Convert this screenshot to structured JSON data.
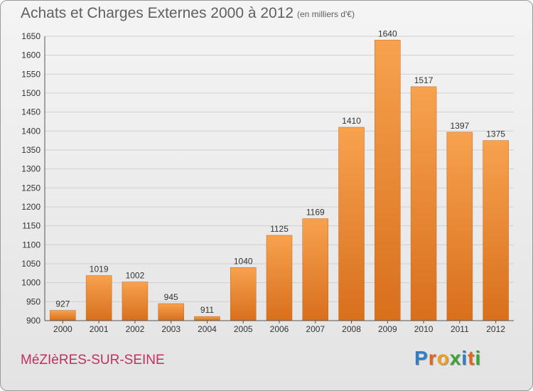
{
  "header": {
    "title": "Achats et Charges Externes 2000 à 2012",
    "unit": "(en milliers d'€)"
  },
  "footer": {
    "commune": "MéZIèRES-SUR-SEINE",
    "brand": {
      "letters": [
        "P",
        "r",
        "o",
        "x",
        "i",
        "t",
        "i"
      ],
      "colors": [
        "#2f7fc8",
        "#e2661d",
        "#f0a020",
        "#3aa33a",
        "#2f7fc8",
        "#e2661d",
        "#3aa33a"
      ]
    }
  },
  "colors": {
    "bar_light": "#f7a24f",
    "bar_dark": "#d86f1c",
    "grid": "#cfcfcf",
    "text": "#333333"
  },
  "chart_data": {
    "type": "bar",
    "categories": [
      "2000",
      "2001",
      "2002",
      "2003",
      "2004",
      "2005",
      "2006",
      "2007",
      "2008",
      "2009",
      "2010",
      "2011",
      "2012"
    ],
    "values": [
      927,
      1019,
      1002,
      945,
      911,
      1040,
      1125,
      1169,
      1410,
      1640,
      1517,
      1397,
      1375
    ],
    "ylim": [
      900,
      1650
    ],
    "yticks": [
      900,
      950,
      1000,
      1050,
      1100,
      1150,
      1200,
      1250,
      1300,
      1350,
      1400,
      1450,
      1500,
      1550,
      1600,
      1650
    ],
    "grid": true,
    "data_labels": true
  }
}
